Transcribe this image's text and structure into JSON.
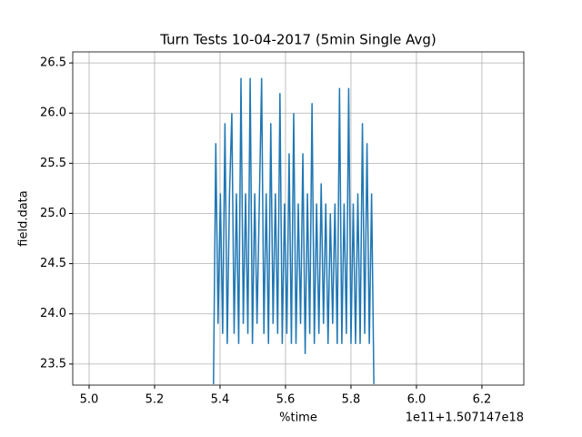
{
  "chart_data": {
    "type": "line",
    "title": "Turn Tests 10-04-2017 (5min Single Avg)",
    "x_label": "%time",
    "y_label": "field.data",
    "x_offset_label": "1e11+1.507147e18",
    "x": [
      5.38,
      5.387,
      5.394,
      5.401,
      5.408,
      5.415,
      5.422,
      5.429,
      5.436,
      5.443,
      5.45,
      5.457,
      5.464,
      5.471,
      5.478,
      5.485,
      5.492,
      5.499,
      5.506,
      5.513,
      5.52,
      5.527,
      5.534,
      5.541,
      5.548,
      5.555,
      5.562,
      5.569,
      5.576,
      5.583,
      5.59,
      5.597,
      5.604,
      5.611,
      5.618,
      5.625,
      5.632,
      5.639,
      5.646,
      5.653,
      5.66,
      5.667,
      5.674,
      5.681,
      5.688,
      5.695,
      5.702,
      5.709,
      5.716,
      5.723,
      5.73,
      5.737,
      5.744,
      5.751,
      5.758,
      5.765,
      5.772,
      5.779,
      5.786,
      5.793,
      5.8,
      5.807,
      5.814,
      5.821,
      5.828,
      5.835,
      5.842,
      5.849,
      5.856,
      5.863,
      5.87
    ],
    "series": [
      {
        "color": "#1f77b4",
        "values": [
          23.3,
          25.7,
          23.9,
          25.2,
          23.8,
          25.9,
          23.7,
          25.2,
          26.0,
          23.8,
          25.2,
          23.7,
          26.35,
          23.9,
          25.2,
          23.8,
          26.35,
          23.7,
          25.2,
          23.9,
          25.1,
          26.35,
          23.8,
          25.2,
          23.7,
          25.9,
          23.9,
          25.2,
          23.8,
          26.2,
          23.7,
          25.1,
          23.8,
          25.6,
          23.7,
          26.0,
          23.7,
          25.1,
          23.9,
          25.6,
          23.6,
          25.2,
          23.8,
          26.1,
          23.7,
          25.1,
          23.8,
          25.3,
          23.9,
          25.1,
          23.7,
          25.0,
          23.9,
          25.1,
          23.7,
          26.25,
          23.7,
          25.1,
          23.8,
          26.25,
          23.7,
          25.1,
          23.7,
          25.2,
          23.7,
          25.9,
          23.8,
          25.7,
          23.7,
          25.2,
          23.3
        ]
      }
    ],
    "xlim": [
      4.95,
      6.328
    ],
    "xticks": [
      {
        "value": 5,
        "label": "5.0"
      },
      5.2,
      5.4,
      5.6,
      5.8,
      {
        "value": 6,
        "label": "6.0"
      },
      6.2
    ],
    "ylim": [
      23.29,
      26.61
    ],
    "yticks": [
      23.5,
      {
        "value": 24,
        "label": "24.0"
      },
      24.5,
      {
        "value": 25,
        "label": "25.0"
      },
      25.5,
      {
        "value": 26,
        "label": "26.0"
      },
      26.5
    ],
    "grid": true
  }
}
